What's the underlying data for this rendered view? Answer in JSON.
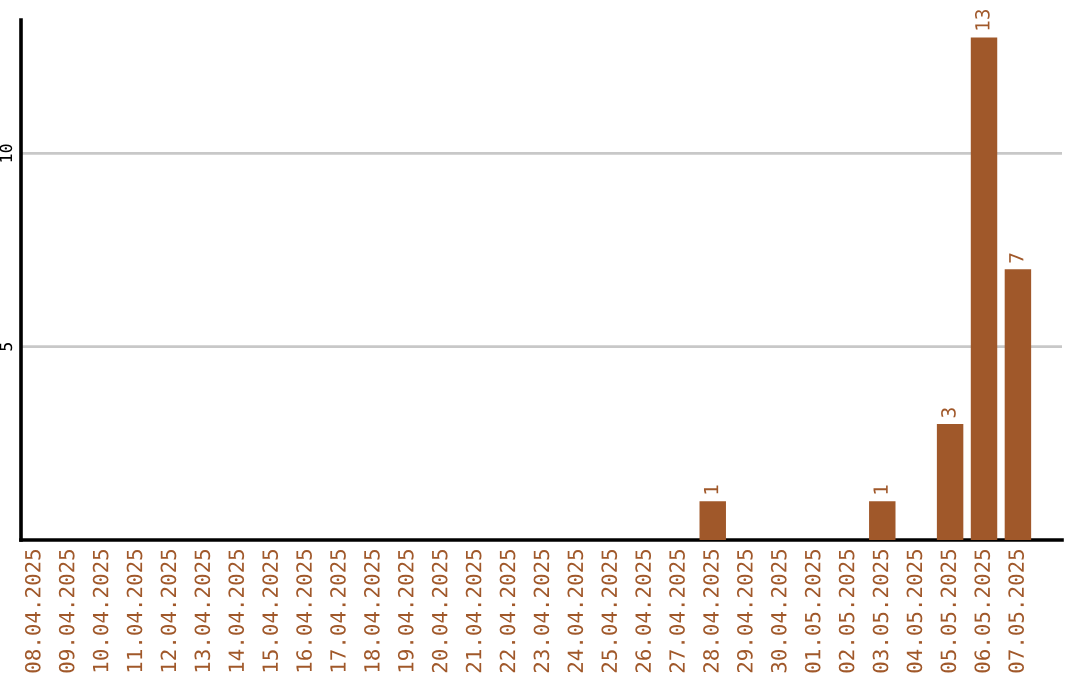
{
  "chart_data": {
    "type": "bar",
    "categories": [
      "08.04.2025",
      "09.04.2025",
      "10.04.2025",
      "11.04.2025",
      "12.04.2025",
      "13.04.2025",
      "14.04.2025",
      "15.04.2025",
      "16.04.2025",
      "17.04.2025",
      "18.04.2025",
      "19.04.2025",
      "20.04.2025",
      "21.04.2025",
      "22.04.2025",
      "23.04.2025",
      "24.04.2025",
      "25.04.2025",
      "26.04.2025",
      "27.04.2025",
      "28.04.2025",
      "29.04.2025",
      "30.04.2025",
      "01.05.2025",
      "02.05.2025",
      "03.05.2025",
      "04.05.2025",
      "05.05.2025",
      "06.05.2025",
      "07.05.2025"
    ],
    "values": [
      0,
      0,
      0,
      0,
      0,
      0,
      0,
      0,
      0,
      0,
      0,
      0,
      0,
      0,
      0,
      0,
      0,
      0,
      0,
      0,
      1,
      0,
      0,
      0,
      0,
      1,
      0,
      3,
      13,
      7
    ],
    "value_labels": [
      null,
      null,
      null,
      null,
      null,
      null,
      null,
      null,
      null,
      null,
      null,
      null,
      null,
      null,
      null,
      null,
      null,
      null,
      null,
      null,
      "1",
      null,
      null,
      null,
      null,
      "1",
      null,
      "3",
      "13",
      "7"
    ],
    "color": "#a0582a",
    "ylim": [
      0,
      13.45
    ],
    "yticks": [
      5,
      10
    ],
    "grid": "y"
  }
}
